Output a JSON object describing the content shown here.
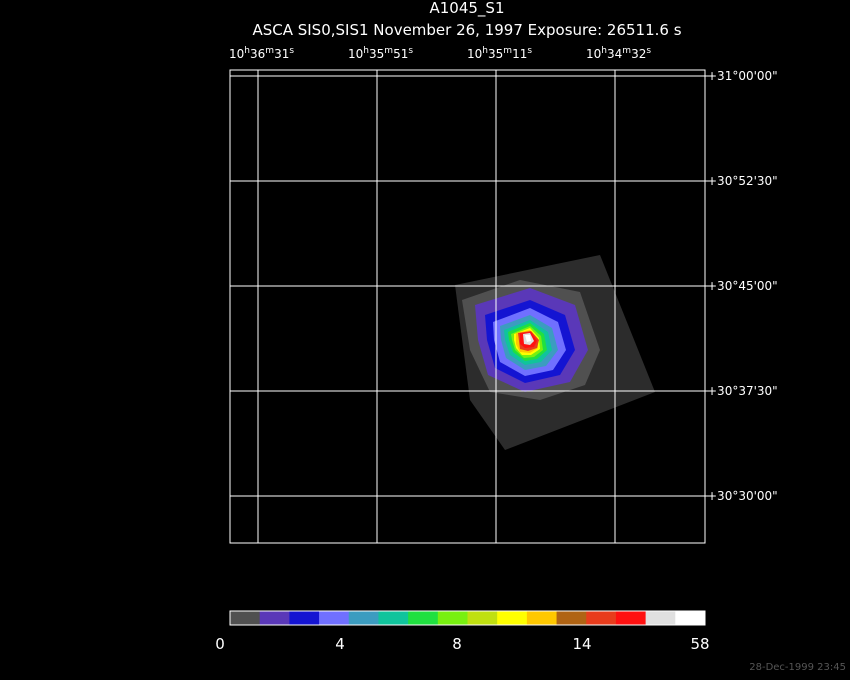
{
  "title": "A1045_S1",
  "subtitle": "ASCA SIS0,SIS1 November 26, 1997 Exposure: 26511.6 s",
  "ra_labels": [
    [
      "10",
      "h",
      "36",
      "m",
      "31",
      "s"
    ],
    [
      "10",
      "h",
      "35",
      "m",
      "51",
      "s"
    ],
    [
      "10",
      "h",
      "35",
      "m",
      "11",
      "s"
    ],
    [
      "10",
      "h",
      "34",
      "m",
      "32",
      "s"
    ]
  ],
  "dec_labels": [
    "+31°00'00\"",
    "+30°52'30\"",
    "+30°45'00\"",
    "+30°37'30\"",
    "+30°30'00\""
  ],
  "colorbar": {
    "colors": [
      "#505050",
      "#5a38b8",
      "#1414d2",
      "#7070ff",
      "#3c9cc0",
      "#10c49c",
      "#20e040",
      "#78f010",
      "#c0e010",
      "#ffff00",
      "#ffc800",
      "#b06414",
      "#e83c1c",
      "#ff1010",
      "#e0e0e0",
      "#ffffff"
    ],
    "labels": [
      "0",
      "4",
      "8",
      "14",
      "58"
    ]
  },
  "timestamp": "28-Dec-1999 23:45"
}
